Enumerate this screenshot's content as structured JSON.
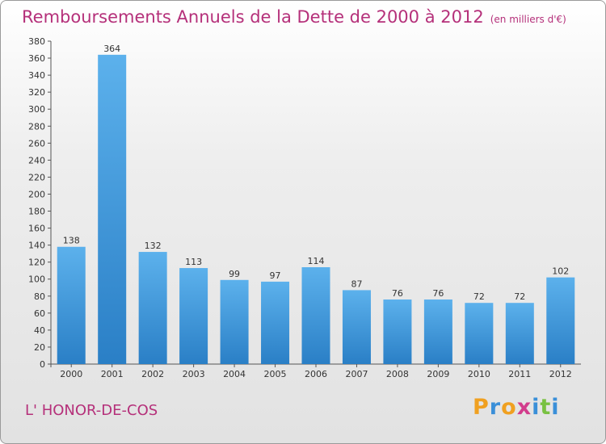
{
  "title": "Remboursements Annuels de la Dette de 2000 à 2012",
  "subtitle": "(en milliers d'€)",
  "town": "L' HONOR-DE-COS",
  "logo": {
    "letters": [
      "P",
      "r",
      "o",
      "x",
      "i",
      "t",
      "i"
    ],
    "colors": [
      "#f0a020",
      "#3a8fd8",
      "#f0a020",
      "#d23c8c",
      "#3a8fd8",
      "#79c142",
      "#3a8fd8"
    ]
  },
  "colors": {
    "bar": "#3a94da",
    "bar_light": "#5cb1ec",
    "title": "#b5307a"
  },
  "chart_data": {
    "type": "bar",
    "categories": [
      "2000",
      "2001",
      "2002",
      "2003",
      "2004",
      "2005",
      "2006",
      "2007",
      "2008",
      "2009",
      "2010",
      "2011",
      "2012"
    ],
    "values": [
      138,
      364,
      132,
      113,
      99,
      97,
      114,
      87,
      76,
      76,
      72,
      72,
      102
    ],
    "ylim": [
      0,
      380
    ],
    "ytick_step": 20,
    "grid": false
  }
}
